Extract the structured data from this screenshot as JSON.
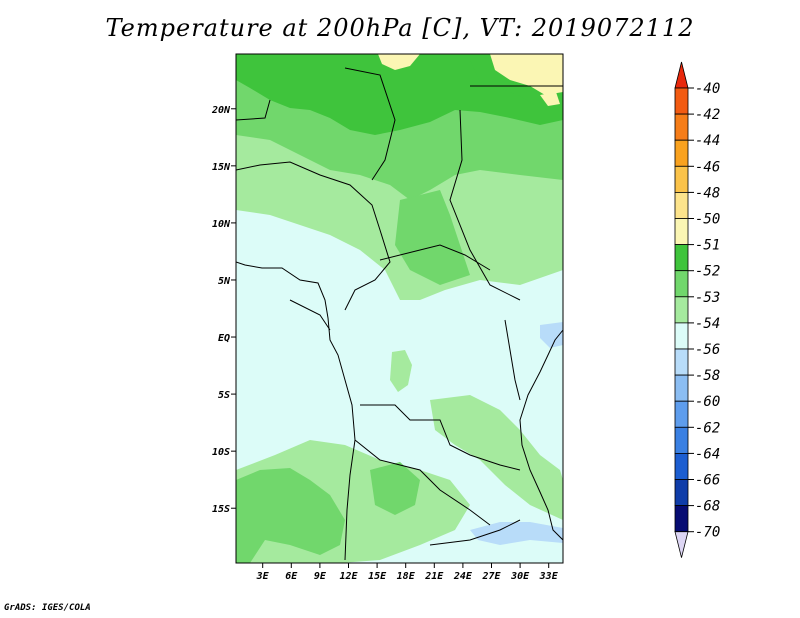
{
  "chart_data": {
    "type": "heatmap",
    "title": "Temperature at 200hPa [C], VT: 2019072112",
    "variable": "Temperature",
    "level": "200hPa",
    "units": "C",
    "valid_time": "2019072112",
    "x_ticks": [
      "3E",
      "6E",
      "9E",
      "12E",
      "15E",
      "18E",
      "21E",
      "24E",
      "27E",
      "30E",
      "33E"
    ],
    "x_tick_values": [
      3,
      6,
      9,
      12,
      15,
      18,
      21,
      24,
      27,
      30,
      33
    ],
    "y_ticks": [
      "20N",
      "15N",
      "10N",
      "5N",
      "EQ",
      "5S",
      "10S",
      "15S"
    ],
    "y_tick_values": [
      20,
      15,
      10,
      5,
      0,
      -5,
      -10,
      -15
    ],
    "xlim": [
      0.2,
      34.5
    ],
    "ylim": [
      -19.8,
      24.8
    ],
    "colorbar": {
      "levels": [
        "-40",
        "-42",
        "-44",
        "-46",
        "-48",
        "-50",
        "-51",
        "-52",
        "-53",
        "-54",
        "-56",
        "-58",
        "-60",
        "-62",
        "-64",
        "-66",
        "-68",
        "-70"
      ],
      "colors": [
        "#e8280c",
        "#f25b12",
        "#f67d18",
        "#f9a21f",
        "#fbc34a",
        "#fde48c",
        "#fbf6b4",
        "#3fc43c",
        "#71d76c",
        "#a5ea9e",
        "#dcfcf8",
        "#b8dcf9",
        "#8bbdf2",
        "#5e9ded",
        "#3a80e3",
        "#1c5ed1",
        "#0f3da9",
        "#070c73"
      ]
    },
    "fields": [
      {
        "band": "-51 to -50",
        "color": "#fbf6b4",
        "region": "far north-east (Libya/Egypt)"
      },
      {
        "band": "-52 to -51",
        "color": "#3fc43c",
        "region": "Sahel/Sahara, north of ~17N"
      },
      {
        "band": "-53 to -52",
        "color": "#71d76c",
        "region": "10N-17N"
      },
      {
        "band": "-54 to -53",
        "color": "#a5ea9e",
        "region": "Chad/Sudan, southern Angola/Zambia"
      },
      {
        "band": "-56 to -54",
        "color": "#dcfcf8",
        "region": "equatorial Africa and Atlantic"
      },
      {
        "band": "-58 to -56",
        "color": "#b8dcf9",
        "region": "Lake Victoria, Mozambique ~17S"
      }
    ]
  },
  "credit": "GrADS: IGES/COLA"
}
